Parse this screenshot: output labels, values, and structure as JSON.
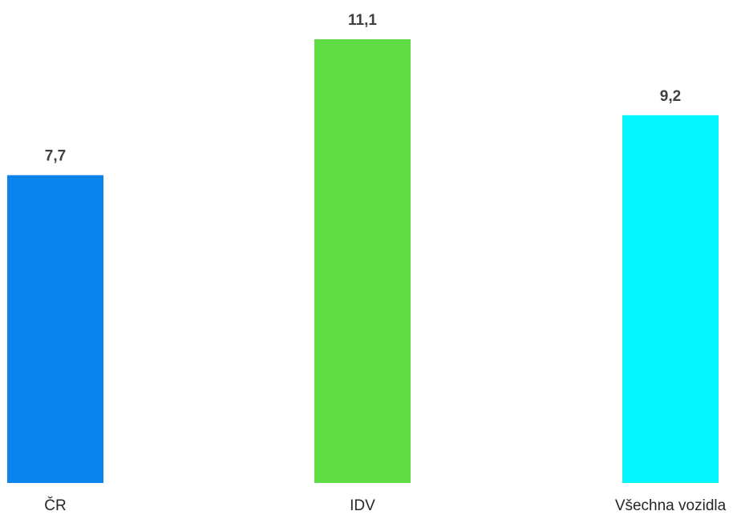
{
  "chart_data": {
    "type": "bar",
    "categories": [
      "ČR",
      "IDV",
      "Všechna vozidla"
    ],
    "values": [
      7.7,
      11.1,
      9.2
    ],
    "value_labels": [
      "7,7",
      "11,1",
      "9,2"
    ],
    "colors": [
      "#0a84ec",
      "#5fdc44",
      "#05f5ff"
    ],
    "title": "",
    "xlabel": "",
    "ylabel": "",
    "ylim": [
      0,
      11.1
    ],
    "grid": false,
    "legend": "none"
  }
}
